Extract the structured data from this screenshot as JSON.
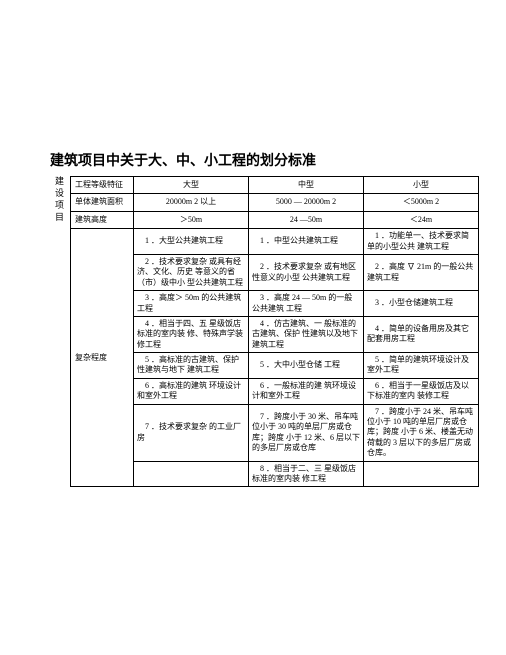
{
  "title": "建筑项目中关于大、中、小工程的划分标准",
  "sideLabel": "建设项目",
  "headers": {
    "feature": "工程等级特征",
    "large": "大型",
    "medium": "中型",
    "small": "小型"
  },
  "row_area": {
    "label": "单体建筑面积",
    "large": "20000m 2 以上",
    "medium": "5000 — 20000m 2",
    "small": "＜5000m 2"
  },
  "row_height": {
    "label": "建筑高度",
    "large": "＞50m",
    "medium": "24 —50m",
    "small": "＜24m"
  },
  "row_complexity_label": "复杂程度",
  "complexity": [
    {
      "large": "1 ．大型公共建筑工程",
      "medium": "1 ．中型公共建筑工程",
      "small": "1 ．功能单一、技术要求简单的小型公共 建筑工程"
    },
    {
      "large": "2 ．技术要求复杂 或具有经济、文化、历史 等意义的省（市）级中小 型公共建筑工程",
      "medium": "2 ．技术要求复杂 或有地区性意义的小型 公共建筑工程",
      "small": "2 ．高度 ∇ 21m 的一般公共建筑工程"
    },
    {
      "large": "3 ．高度＞ 50m 的公共建筑工程",
      "medium": "3 ．高度 24 — 50m 的一般公共建筑 工程",
      "small": "3 ．小型仓储建筑工程"
    },
    {
      "large": "4 ．相当于四、五 星级饭店标准的室内装 修、特殊声学装修工程",
      "medium": "4 ．仿古建筑、一 般标准的古建筑、保护 性建筑以及地下建筑工程",
      "small": "4 ．简单的设备用房及其它配套用房工程"
    },
    {
      "large": "5 ．高标准的古建筑、保护性建筑与地下 建筑工程",
      "medium": "5 ．大中小型仓储 工程",
      "small": "5 ．简单的建筑环境设计及室外工程"
    },
    {
      "large": "6 ．高标准的建筑 环境设计和室外工程",
      "medium": "6 ．一般标准的建 筑环境设计和室外工程",
      "small": "6 ．相当于一星级饭店及以下标准的室内 装修工程"
    },
    {
      "large": "7 ．技术要求复杂 的工业厂房",
      "medium": "7 ．跨度小于 30 米、吊车吨位小于 30 吨的单层厂房或仓库；跨度 小于 12 米、6 层以下的多层厂房或仓库",
      "small": "7 ．跨度小于 24 米、吊车吨位小于 10 吨的单层厂房或仓库；跨度 小于 6 米、楼盖无动荷载的 3 层以下的多层厂房或仓库。"
    },
    {
      "large": "",
      "medium": "8 ．相当于二、三 星级饭店标准的室内装 修工程",
      "small": ""
    }
  ]
}
